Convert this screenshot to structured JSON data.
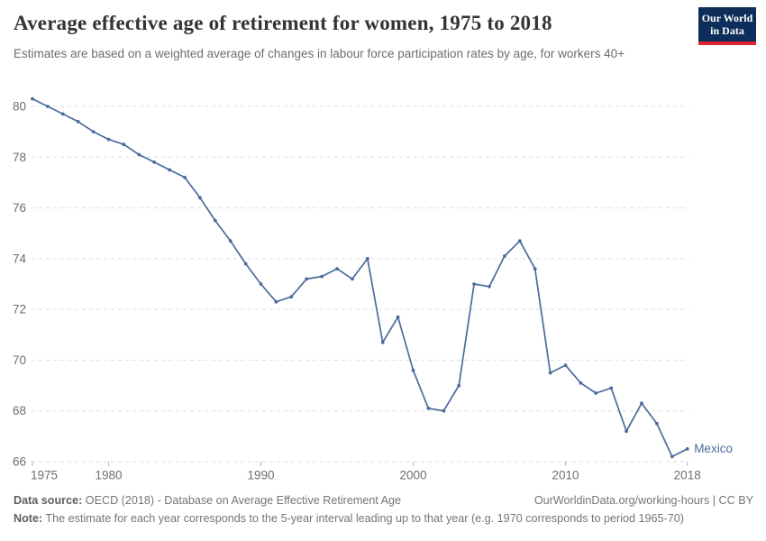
{
  "header": {
    "logo": {
      "line1": "Our World",
      "line2": "in Data"
    }
  },
  "chart_data": {
    "type": "line",
    "title": "Average effective age of retirement for women, 1975 to 2018",
    "subtitle": "Estimates are based on a weighted average of changes in labour force participation rates by age, for workers 40+",
    "xlabel": "",
    "ylabel": "",
    "xlim": [
      1975,
      2018
    ],
    "ylim": [
      66,
      80.5
    ],
    "xticks": [
      1975,
      1980,
      1990,
      2000,
      2010,
      2018
    ],
    "yticks": [
      66,
      68,
      70,
      72,
      74,
      76,
      78,
      80
    ],
    "grid": "horizontal-dashed",
    "legend": "end-of-line-label",
    "x": [
      1975,
      1976,
      1977,
      1978,
      1979,
      1980,
      1981,
      1982,
      1983,
      1984,
      1985,
      1986,
      1987,
      1988,
      1989,
      1990,
      1991,
      1992,
      1993,
      1994,
      1995,
      1996,
      1997,
      1998,
      1999,
      2000,
      2001,
      2002,
      2003,
      2004,
      2005,
      2006,
      2007,
      2008,
      2009,
      2010,
      2011,
      2012,
      2013,
      2014,
      2015,
      2016,
      2017,
      2018
    ],
    "series": [
      {
        "name": "Mexico",
        "color": "#4C6A9C",
        "values": [
          80.3,
          80.0,
          79.7,
          79.4,
          79.0,
          78.7,
          78.5,
          78.1,
          77.8,
          77.5,
          77.2,
          76.4,
          75.5,
          74.7,
          73.8,
          73.0,
          72.3,
          72.5,
          73.2,
          73.3,
          73.6,
          73.2,
          74.0,
          70.7,
          71.7,
          69.6,
          68.1,
          68.0,
          69.0,
          73.0,
          72.9,
          74.1,
          74.7,
          73.6,
          69.5,
          69.8,
          69.1,
          68.7,
          68.9,
          67.2,
          68.3,
          67.5,
          66.2,
          66.5
        ]
      }
    ]
  },
  "footer": {
    "datasource_label": "Data source:",
    "datasource_text": " OECD (2018) - Database on Average Effective Retirement Age",
    "link_text": "OurWorldinData.org/working-hours | CC BY",
    "note_label": "Note:",
    "note_text": " The estimate for each year corresponds to the 5-year interval leading up to that year (e.g. 1970 corresponds to period 1965-70)"
  },
  "colors": {
    "line": "#4C6A9C",
    "grid": "#dedede",
    "tick": "#b5b5b5",
    "axis_text": "#6e6e6e",
    "title": "#333333",
    "subtitle": "#6d6d6d",
    "footer": "#757575",
    "logo_bg": "#0D2E5B",
    "logo_stripe": "#DB2531"
  }
}
